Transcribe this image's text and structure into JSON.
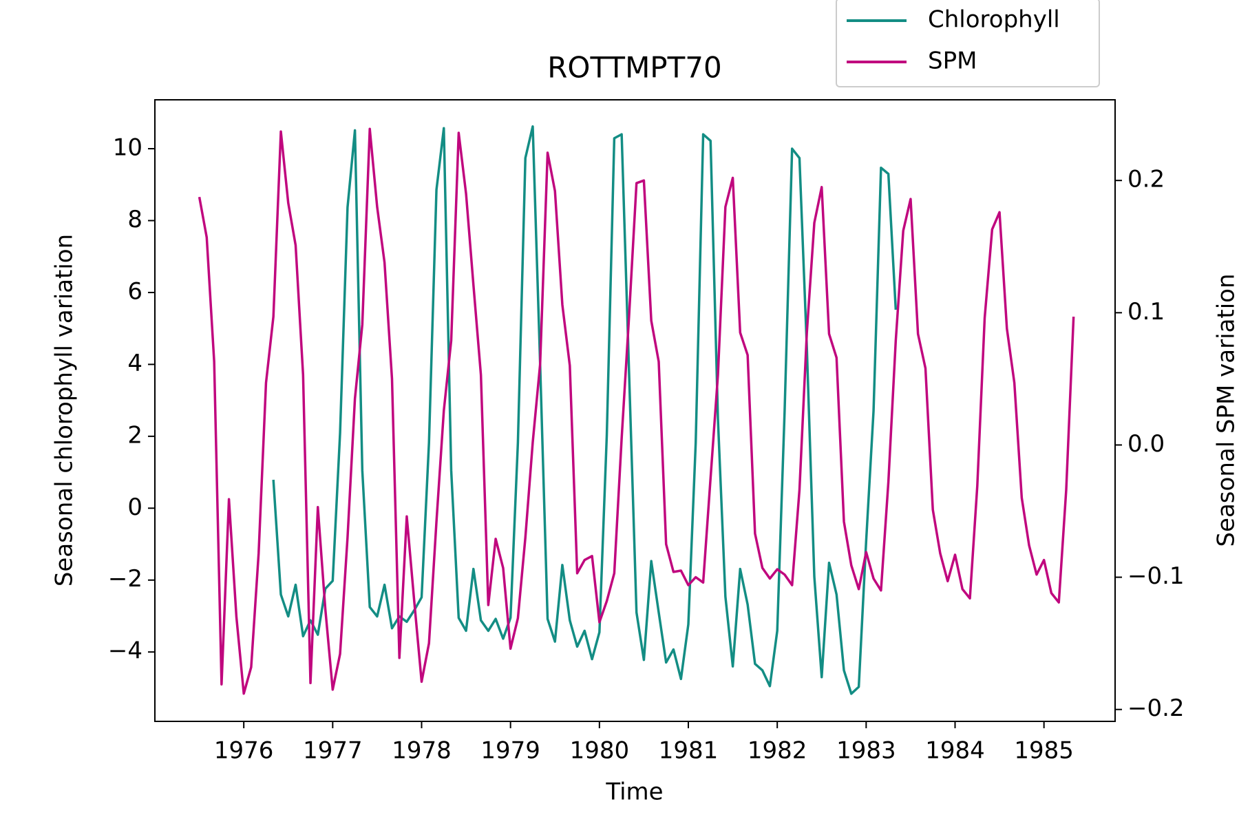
{
  "chart_data": {
    "type": "line",
    "title": "ROTTMPT70",
    "xlabel": "Time",
    "ylabel": "Seasonal chlorophyll variation",
    "y2label": "Seasonal SPM variation",
    "xlim": [
      1975.0,
      1985.8
    ],
    "xticks": [
      1976,
      1977,
      1978,
      1979,
      1980,
      1981,
      1982,
      1983,
      1984,
      1985
    ],
    "ylim": [
      -5.93,
      11.36
    ],
    "yticks": [
      {
        "value": -4,
        "label": "−4"
      },
      {
        "value": -2,
        "label": "−2"
      },
      0,
      2,
      4,
      6,
      8,
      10
    ],
    "y2lim": [
      -0.209,
      0.261
    ],
    "y2ticks": [
      {
        "value": -0.2,
        "label": "−0.2"
      },
      {
        "value": -0.1,
        "label": "−0.1"
      },
      {
        "value": 0,
        "label": "0.0"
      },
      0.1,
      0.2
    ],
    "grid": false,
    "legend": "upper right",
    "series": [
      {
        "name": "Chlorophyll",
        "color": "#138d84",
        "x": [
          1976.333,
          1976.417,
          1976.5,
          1976.583,
          1976.667,
          1976.75,
          1976.833,
          1976.917,
          1977,
          1977.083,
          1977.167,
          1977.25,
          1977.333,
          1977.417,
          1977.5,
          1977.583,
          1977.667,
          1977.75,
          1977.833,
          1977.917,
          1978,
          1978.083,
          1978.167,
          1978.25,
          1978.333,
          1978.417,
          1978.5,
          1978.583,
          1978.667,
          1978.75,
          1978.833,
          1978.917,
          1979,
          1979.083,
          1979.167,
          1979.25,
          1979.333,
          1979.417,
          1979.5,
          1979.583,
          1979.667,
          1979.75,
          1979.833,
          1979.917,
          1980,
          1980.083,
          1980.167,
          1980.25,
          1980.333,
          1980.417,
          1980.5,
          1980.583,
          1980.667,
          1980.75,
          1980.833,
          1980.917,
          1981,
          1981.083,
          1981.167,
          1981.25,
          1981.333,
          1981.417,
          1981.5,
          1981.583,
          1981.667,
          1981.75,
          1981.833,
          1981.917,
          1982,
          1982.083,
          1982.167,
          1982.25,
          1982.333,
          1982.417,
          1982.5,
          1982.583,
          1982.667,
          1982.75,
          1982.833,
          1982.917,
          1983,
          1983.083,
          1983.167,
          1983.25,
          1983.333
        ],
        "values": [
          0.79,
          -2.4,
          -3.01,
          -2.13,
          -3.56,
          -3.12,
          -3.52,
          -2.24,
          -2.02,
          2.09,
          8.37,
          10.51,
          1.05,
          -2.75,
          -3.01,
          -2.13,
          -3.34,
          -3.01,
          -3.16,
          -2.84,
          -2.48,
          1.82,
          8.86,
          10.57,
          1.05,
          -3.05,
          -3.41,
          -1.69,
          -3.12,
          -3.41,
          -3.08,
          -3.63,
          -3.05,
          1.82,
          9.74,
          10.62,
          4.02,
          -3.08,
          -3.71,
          -1.58,
          -3.12,
          -3.85,
          -3.41,
          -4.2,
          -3.45,
          2.04,
          10.29,
          10.4,
          3.8,
          -2.9,
          -4.22,
          -1.47,
          -2.9,
          -4.29,
          -3.93,
          -4.75,
          -3.23,
          1.82,
          10.4,
          10.22,
          2.48,
          -2.46,
          -4.4,
          -1.69,
          -2.68,
          -4.33,
          -4.51,
          -4.95,
          -3.41,
          2.7,
          10.0,
          9.74,
          4.46,
          -1.91,
          -4.7,
          -1.52,
          -2.4,
          -4.51,
          -5.16,
          -4.97,
          -0.92,
          2.7,
          9.47,
          9.3,
          5.52
        ]
      },
      {
        "name": "SPM",
        "color": "#c0077e",
        "axis": "y2",
        "x": [
          1975.5,
          1975.583,
          1975.667,
          1975.75,
          1975.833,
          1975.917,
          1976,
          1976.083,
          1976.167,
          1976.25,
          1976.333,
          1976.417,
          1976.5,
          1976.583,
          1976.667,
          1976.75,
          1976.833,
          1976.917,
          1977,
          1977.083,
          1977.167,
          1977.25,
          1977.333,
          1977.417,
          1977.5,
          1977.583,
          1977.667,
          1977.75,
          1977.833,
          1977.917,
          1978,
          1978.083,
          1978.167,
          1978.25,
          1978.333,
          1978.417,
          1978.5,
          1978.583,
          1978.667,
          1978.75,
          1978.833,
          1978.917,
          1979,
          1979.083,
          1979.167,
          1979.25,
          1979.333,
          1979.417,
          1979.5,
          1979.583,
          1979.667,
          1979.75,
          1979.833,
          1979.917,
          1980,
          1980.083,
          1980.167,
          1980.25,
          1980.333,
          1980.417,
          1980.5,
          1980.583,
          1980.667,
          1980.75,
          1980.833,
          1980.917,
          1981,
          1981.083,
          1981.167,
          1981.25,
          1981.333,
          1981.417,
          1981.5,
          1981.583,
          1981.667,
          1981.75,
          1981.833,
          1981.917,
          1982,
          1982.083,
          1982.167,
          1982.25,
          1982.333,
          1982.417,
          1982.5,
          1982.583,
          1982.667,
          1982.75,
          1982.833,
          1982.917,
          1983,
          1983.083,
          1983.167,
          1983.25,
          1983.333,
          1983.417,
          1983.5,
          1983.583,
          1983.667,
          1983.75,
          1983.833,
          1983.917,
          1984,
          1984.083,
          1984.167,
          1984.25,
          1984.333,
          1984.417,
          1984.5,
          1984.583,
          1984.667,
          1984.75,
          1984.833,
          1984.917,
          1985,
          1985.083,
          1985.167,
          1985.25,
          1985.333
        ],
        "values": [
          0.1875,
          0.157,
          0.063,
          -0.181,
          -0.041,
          -0.13,
          -0.188,
          -0.168,
          -0.082,
          0.047,
          0.097,
          0.237,
          0.183,
          0.151,
          0.053,
          -0.18,
          -0.047,
          -0.124,
          -0.185,
          -0.158,
          -0.07,
          0.035,
          0.091,
          0.239,
          0.18,
          0.138,
          0.05,
          -0.161,
          -0.054,
          -0.118,
          -0.179,
          -0.15,
          -0.058,
          0.026,
          0.079,
          0.236,
          0.19,
          0.121,
          0.053,
          -0.121,
          -0.071,
          -0.093,
          -0.154,
          -0.131,
          -0.07,
          0.002,
          0.061,
          0.221,
          0.192,
          0.106,
          0.06,
          -0.097,
          -0.087,
          -0.084,
          -0.134,
          -0.118,
          -0.097,
          0.005,
          0.097,
          0.198,
          0.2,
          0.094,
          0.063,
          -0.075,
          -0.096,
          -0.095,
          -0.106,
          -0.1,
          -0.104,
          -0.025,
          0.053,
          0.18,
          0.202,
          0.085,
          0.068,
          -0.067,
          -0.093,
          -0.101,
          -0.094,
          -0.098,
          -0.106,
          -0.034,
          0.085,
          0.168,
          0.195,
          0.084,
          0.066,
          -0.058,
          -0.091,
          -0.109,
          -0.081,
          -0.101,
          -0.11,
          -0.028,
          0.079,
          0.162,
          0.186,
          0.084,
          0.058,
          -0.049,
          -0.082,
          -0.103,
          -0.083,
          -0.109,
          -0.116,
          -0.031,
          0.096,
          0.163,
          0.176,
          0.088,
          0.047,
          -0.04,
          -0.076,
          -0.098,
          -0.087,
          -0.112,
          -0.119,
          -0.034,
          0.097
        ]
      }
    ]
  }
}
